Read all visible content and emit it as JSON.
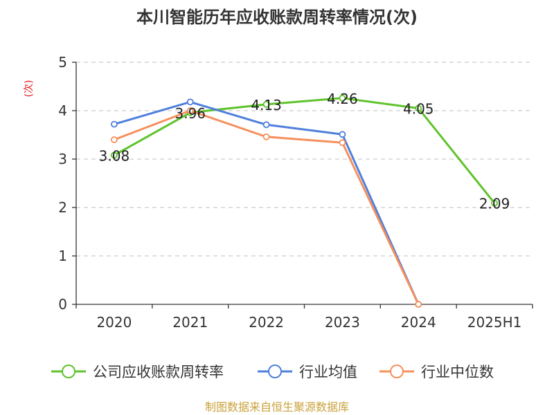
{
  "chart_data": {
    "type": "line",
    "title": "本川智能历年应收账款周转率情况(次)",
    "ylabel": "(次)",
    "categories": [
      "2020",
      "2021",
      "2022",
      "2023",
      "2024",
      "2025H1"
    ],
    "ylim": [
      0,
      5
    ],
    "yticks": [
      0,
      1,
      2,
      3,
      4,
      5
    ],
    "grid": true,
    "legend_position": "bottom",
    "series": [
      {
        "name": "公司应收账款周转率",
        "color": "#5ec32c",
        "values": [
          3.08,
          3.96,
          4.13,
          4.26,
          4.05,
          2.09
        ],
        "labels": [
          "3.08",
          "3.96",
          "4.13",
          "4.26",
          "4.05",
          "2.09"
        ]
      },
      {
        "name": "行业均值",
        "color": "#4f7fdc",
        "values": [
          3.72,
          4.18,
          3.71,
          3.51,
          0,
          null
        ]
      },
      {
        "name": "行业中位数",
        "color": "#f58f5b",
        "values": [
          3.4,
          4.0,
          3.46,
          3.34,
          0,
          null
        ]
      }
    ]
  },
  "source": "制图数据来自恒生聚源数据库"
}
